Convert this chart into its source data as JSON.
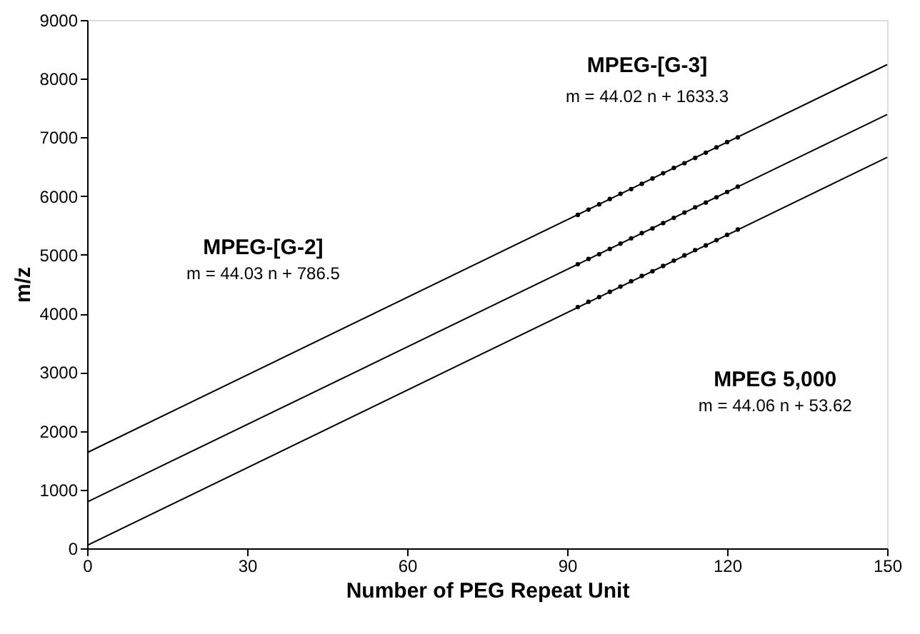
{
  "chart_data": {
    "type": "scatter",
    "xlabel": "Number of PEG Repeat Unit",
    "ylabel": "m/z",
    "xlim": [
      0,
      150
    ],
    "xticks": [
      0,
      30,
      60,
      90,
      120,
      150
    ],
    "ylim": [
      0,
      9000
    ],
    "yticks": [
      0,
      1000,
      2000,
      3000,
      4000,
      5000,
      6000,
      7000,
      8000,
      9000
    ],
    "grid": false,
    "series": [
      {
        "type": "line",
        "marker": "none",
        "color": "#000000",
        "x": [
          0,
          150
        ],
        "values": [
          1630,
          8240
        ]
      },
      {
        "type": "line",
        "marker": "none",
        "color": "#000000",
        "x": [
          0,
          150
        ],
        "values": [
          790,
          7390
        ]
      },
      {
        "type": "line",
        "marker": "none",
        "color": "#000000",
        "x": [
          0,
          150
        ],
        "values": [
          50,
          6660
        ]
      },
      {
        "marker": "circle",
        "color": "#000000",
        "x": [
          92,
          94,
          96,
          98,
          100,
          102,
          104,
          106,
          108,
          110,
          112,
          114,
          116,
          118,
          120,
          122
        ],
        "values": [
          5680,
          5770,
          5860,
          5950,
          6040,
          6120,
          6210,
          6300,
          6390,
          6480,
          6560,
          6650,
          6740,
          6830,
          6920,
          7000
        ]
      },
      {
        "marker": "circle",
        "color": "#000000",
        "x": [
          92,
          94,
          96,
          98,
          100,
          102,
          104,
          106,
          108,
          110,
          112,
          114,
          116,
          118,
          120,
          122
        ],
        "values": [
          4840,
          4930,
          5010,
          5100,
          5190,
          5280,
          5370,
          5450,
          5540,
          5630,
          5720,
          5810,
          5890,
          5980,
          6070,
          6160
        ]
      },
      {
        "marker": "circle",
        "color": "#000000",
        "x": [
          92,
          94,
          96,
          98,
          100,
          102,
          104,
          106,
          108,
          110,
          112,
          114,
          116,
          118,
          120,
          122
        ],
        "values": [
          4110,
          4200,
          4280,
          4370,
          4460,
          4550,
          4640,
          4720,
          4810,
          4900,
          4990,
          5080,
          5160,
          5250,
          5340,
          5430
        ]
      }
    ],
    "annotations": [
      "MPEG-[G-3]",
      "m = 44.02 n + 1633.3",
      "MPEG-[G-2]",
      "m = 44.03 n + 786.5",
      "MPEG 5,000",
      "m = 44.06 n + 53.62"
    ]
  }
}
